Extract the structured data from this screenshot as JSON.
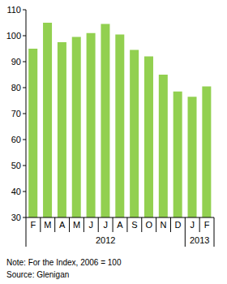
{
  "chart_data": {
    "type": "bar",
    "categories": [
      "F",
      "M",
      "A",
      "M",
      "J",
      "J",
      "A",
      "S",
      "O",
      "N",
      "D",
      "J",
      "F"
    ],
    "values": [
      95,
      105,
      97.5,
      99.5,
      101,
      104.5,
      100.5,
      94.5,
      92,
      85,
      78.5,
      76.5,
      80.5
    ],
    "color": "#92d050",
    "ylim": [
      30,
      110
    ],
    "yticks": [
      30,
      40,
      50,
      60,
      70,
      80,
      90,
      100,
      110
    ],
    "grid": false,
    "x_groups": [
      {
        "label": "2012",
        "first": 0,
        "last": 10
      },
      {
        "label": "2013",
        "first": 11,
        "last": 12
      }
    ],
    "annotations": [
      "Note: For the Index, 2006 = 100",
      "Source: Glenigan"
    ]
  }
}
